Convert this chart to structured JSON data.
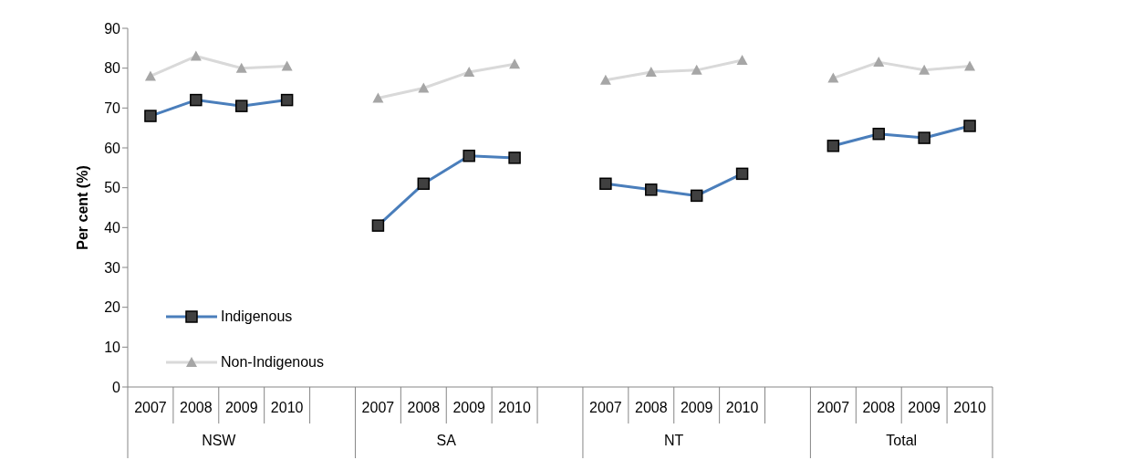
{
  "chart_data": {
    "type": "line",
    "ylabel": "Per cent (%)",
    "categories": [
      "2007",
      "2008",
      "2009",
      "2010",
      null,
      "2007",
      "2008",
      "2009",
      "2010",
      null,
      "2007",
      "2008",
      "2009",
      "2010",
      null,
      "2007",
      "2008",
      "2009",
      "2010"
    ],
    "annotations": [
      "NSW",
      "SA",
      "NT",
      "Total"
    ],
    "series": [
      {
        "name": "Indigenous",
        "color": "#4a7ebb",
        "marker": "square",
        "values": [
          68,
          72,
          70.5,
          72,
          null,
          40.5,
          51,
          58,
          57.5,
          null,
          51,
          49.5,
          48,
          53.5,
          null,
          60.5,
          63.5,
          62.5,
          65.5
        ]
      },
      {
        "name": "Non-Indigenous",
        "color": "#d9d9d9",
        "marker": "triangle",
        "values": [
          78,
          83,
          80,
          80.5,
          null,
          72.5,
          75,
          79,
          81,
          null,
          77,
          79,
          79.5,
          82,
          null,
          77.5,
          81.5,
          79.5,
          80.5
        ]
      }
    ],
    "ylim": [
      0,
      90
    ],
    "yticks": [
      0,
      10,
      20,
      30,
      40,
      50,
      60,
      70,
      80,
      90
    ],
    "legend": "bottom left",
    "line_style": "solid"
  }
}
